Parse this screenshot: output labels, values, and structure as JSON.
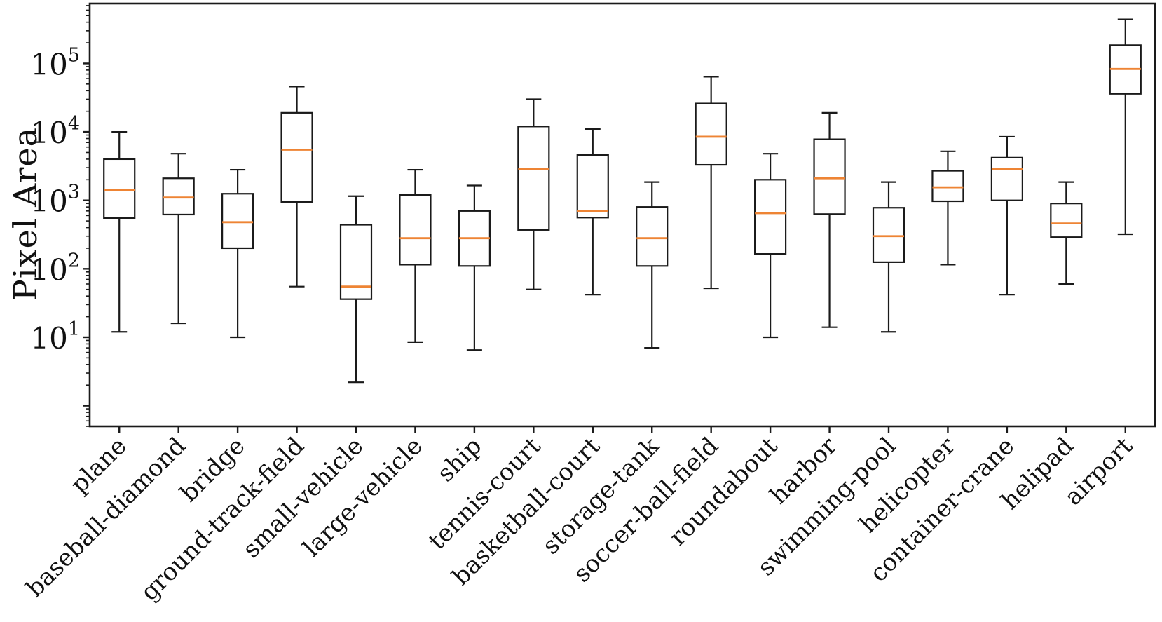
{
  "chart_data": {
    "type": "box",
    "title": "",
    "xlabel": "",
    "ylabel": "Pixel Area",
    "yscale": "log",
    "ylim": [
      0.5,
      750000
    ],
    "grid": false,
    "legend": null,
    "ytick_base": "10",
    "ytick_exponents": [
      "1",
      "2",
      "3",
      "4",
      "5"
    ],
    "categories": [
      "plane",
      "baseball-diamond",
      "bridge",
      "ground-track-field",
      "small-vehicle",
      "large-vehicle",
      "ship",
      "tennis-court",
      "basketball-court",
      "storage-tank",
      "soccer-ball-field",
      "roundabout",
      "harbor",
      "swimming-pool",
      "helicopter",
      "container-crane",
      "helipad",
      "airport"
    ],
    "series": [
      {
        "name": "plane",
        "whisker_low": 12,
        "q1": 550,
        "median": 1400,
        "q3": 4000,
        "whisker_high": 10000
      },
      {
        "name": "baseball-diamond",
        "whisker_low": 16,
        "q1": 620,
        "median": 1100,
        "q3": 2100,
        "whisker_high": 4800
      },
      {
        "name": "bridge",
        "whisker_low": 10,
        "q1": 200,
        "median": 480,
        "q3": 1250,
        "whisker_high": 2800
      },
      {
        "name": "ground-track-field",
        "whisker_low": 55,
        "q1": 950,
        "median": 5500,
        "q3": 19000,
        "whisker_high": 46000
      },
      {
        "name": "small-vehicle",
        "whisker_low": 2.2,
        "q1": 36,
        "median": 55,
        "q3": 440,
        "whisker_high": 1150
      },
      {
        "name": "large-vehicle",
        "whisker_low": 8.5,
        "q1": 115,
        "median": 280,
        "q3": 1200,
        "whisker_high": 2800
      },
      {
        "name": "ship",
        "whisker_low": 6.5,
        "q1": 110,
        "median": 280,
        "q3": 700,
        "whisker_high": 1650
      },
      {
        "name": "tennis-court",
        "whisker_low": 50,
        "q1": 370,
        "median": 2900,
        "q3": 12000,
        "whisker_high": 30000
      },
      {
        "name": "basketball-court",
        "whisker_low": 42,
        "q1": 560,
        "median": 700,
        "q3": 4600,
        "whisker_high": 11000
      },
      {
        "name": "storage-tank",
        "whisker_low": 7,
        "q1": 110,
        "median": 280,
        "q3": 800,
        "whisker_high": 1850
      },
      {
        "name": "soccer-ball-field",
        "whisker_low": 52,
        "q1": 3300,
        "median": 8500,
        "q3": 26000,
        "whisker_high": 64000
      },
      {
        "name": "roundabout",
        "whisker_low": 10,
        "q1": 165,
        "median": 650,
        "q3": 2000,
        "whisker_high": 4800
      },
      {
        "name": "harbor",
        "whisker_low": 14,
        "q1": 630,
        "median": 2100,
        "q3": 7800,
        "whisker_high": 19000
      },
      {
        "name": "swimming-pool",
        "whisker_low": 12,
        "q1": 125,
        "median": 300,
        "q3": 780,
        "whisker_high": 1850
      },
      {
        "name": "helicopter",
        "whisker_low": 115,
        "q1": 970,
        "median": 1550,
        "q3": 2700,
        "whisker_high": 5200
      },
      {
        "name": "container-crane",
        "whisker_low": 42,
        "q1": 1000,
        "median": 2900,
        "q3": 4200,
        "whisker_high": 8500
      },
      {
        "name": "helipad",
        "whisker_low": 60,
        "q1": 290,
        "median": 460,
        "q3": 900,
        "whisker_high": 1850
      },
      {
        "name": "airport",
        "whisker_low": 320,
        "q1": 36000,
        "median": 83000,
        "q3": 185000,
        "whisker_high": 440000
      }
    ],
    "colors": {
      "line": "#1a1a1a",
      "median": "#ee8434",
      "background": "#ffffff"
    }
  }
}
